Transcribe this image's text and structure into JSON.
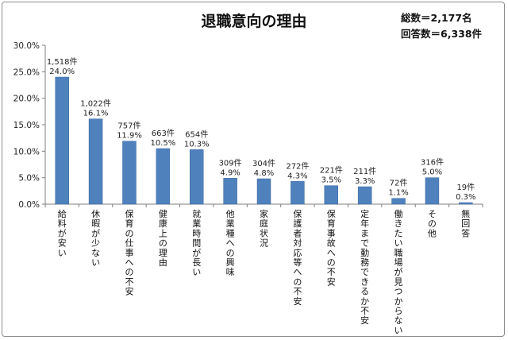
{
  "summary": {
    "total": "総数＝2,177名",
    "answers": "回答数＝6,338件"
  },
  "colors": {
    "bar": "#4f81bd",
    "bar_edge": "#3a6aa3",
    "axis": "#7f7f7f",
    "grid": "#d9d9d9"
  },
  "chart_data": {
    "type": "bar",
    "title": "退職意向の理由",
    "xlabel": "",
    "ylabel": "",
    "ylim": [
      0,
      30
    ],
    "yticks": [
      "0.0%",
      "5.0%",
      "10.0%",
      "15.0%",
      "20.0%",
      "25.0%",
      "30.0%"
    ],
    "grid": false,
    "categories": [
      "給料が安い",
      "休暇が少ない",
      "保育の仕事への不安",
      "健康上の理由",
      "就業時間が長い",
      "他業種への興味",
      "家庭状況",
      "保護者対応等への不安",
      "保育事故への不安",
      "定年まで勤務できるか不安",
      "働きたい職場が見つからない",
      "その他",
      "無回答"
    ],
    "values": [
      24.0,
      16.1,
      11.9,
      10.5,
      10.3,
      4.9,
      4.8,
      4.3,
      3.5,
      3.3,
      1.1,
      5.0,
      0.3
    ],
    "counts": [
      "1,518件",
      "1,022件",
      "757件",
      "663件",
      "654件",
      "309件",
      "304件",
      "272件",
      "221件",
      "211件",
      "72件",
      "316件",
      "19件"
    ],
    "percent_labels": [
      "24.0%",
      "16.1%",
      "11.9%",
      "10.5%",
      "10.3%",
      "4.9%",
      "4.8%",
      "4.3%",
      "3.5%",
      "3.3%",
      "1.1%",
      "5.0%",
      "0.3%"
    ]
  }
}
